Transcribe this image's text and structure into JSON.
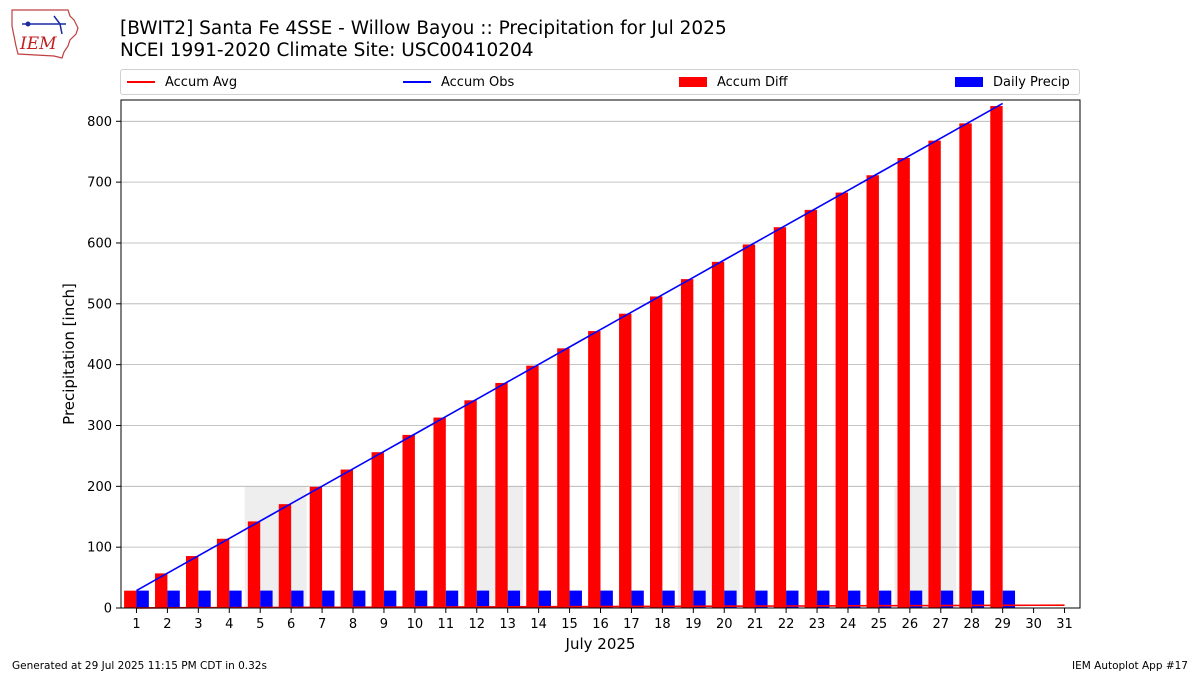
{
  "header": {
    "logo_text": "IEM",
    "title_line1": "[BWIT2] Santa Fe 4SSE - Willow Bayou :: Precipitation for Jul 2025",
    "title_line2": "NCEI 1991-2020 Climate Site: USC00410204"
  },
  "footer": {
    "left": "Generated at 29 Jul 2025 11:15 PM CDT in 0.32s",
    "right": "IEM Autoplot App #17"
  },
  "colors": {
    "accum_avg": "#ff0000",
    "accum_obs": "#0000ff",
    "accum_diff": "#ff0000",
    "daily_precip": "#0000ff",
    "weekend_shade": "#eeeeee",
    "grid": "#b0b0b0"
  },
  "chart_data": {
    "type": "bar",
    "xlabel": "July 2025",
    "ylabel": "Precipitation [inch]",
    "ylim": [
      0,
      835
    ],
    "xlim": [
      0.5,
      31.5
    ],
    "yticks": [
      0,
      100,
      200,
      300,
      400,
      500,
      600,
      700,
      800
    ],
    "grid": true,
    "legend_position": "top",
    "days": [
      1,
      2,
      3,
      4,
      5,
      6,
      7,
      8,
      9,
      10,
      11,
      12,
      13,
      14,
      15,
      16,
      17,
      18,
      19,
      20,
      21,
      22,
      23,
      24,
      25,
      26,
      27,
      28,
      29,
      30,
      31
    ],
    "weekend_shading": [
      {
        "start": 4.5,
        "end": 6.5
      },
      {
        "start": 11.5,
        "end": 13.5
      },
      {
        "start": 18.5,
        "end": 20.5
      },
      {
        "start": 25.5,
        "end": 27.5
      }
    ],
    "weekend_shading_top": 200,
    "series": [
      {
        "name": "Accum Avg",
        "type": "line",
        "x": [
          1,
          2,
          3,
          4,
          5,
          6,
          7,
          8,
          9,
          10,
          11,
          12,
          13,
          14,
          15,
          16,
          17,
          18,
          19,
          20,
          21,
          22,
          23,
          24,
          25,
          26,
          27,
          28,
          29,
          30,
          31
        ],
        "values": [
          0.15,
          0.3,
          0.45,
          0.6,
          0.75,
          0.9,
          1.05,
          1.2,
          1.35,
          1.5,
          1.65,
          1.8,
          1.95,
          2.1,
          2.25,
          2.4,
          2.55,
          2.7,
          2.85,
          3.0,
          3.15,
          3.3,
          3.45,
          3.6,
          3.75,
          3.9,
          4.05,
          4.2,
          4.35,
          4.5,
          4.65
        ]
      },
      {
        "name": "Accum Obs",
        "type": "line",
        "x": [
          1,
          2,
          3,
          4,
          5,
          6,
          7,
          8,
          9,
          10,
          11,
          12,
          13,
          14,
          15,
          16,
          17,
          18,
          19,
          20,
          21,
          22,
          23,
          24,
          25,
          26,
          27,
          28,
          29
        ],
        "values": [
          28.6,
          57.2,
          85.8,
          114.4,
          143.0,
          171.6,
          200.2,
          228.8,
          257.4,
          286.0,
          314.6,
          343.2,
          371.8,
          400.4,
          429.0,
          457.6,
          486.2,
          514.8,
          543.4,
          572.0,
          600.6,
          629.2,
          657.8,
          686.4,
          715.0,
          743.6,
          772.2,
          800.8,
          829.4
        ]
      },
      {
        "name": "Accum Diff",
        "type": "bar",
        "x": [
          1,
          2,
          3,
          4,
          5,
          6,
          7,
          8,
          9,
          10,
          11,
          12,
          13,
          14,
          15,
          16,
          17,
          18,
          19,
          20,
          21,
          22,
          23,
          24,
          25,
          26,
          27,
          28,
          29
        ],
        "values": [
          28.5,
          56.9,
          85.4,
          113.8,
          142.3,
          170.7,
          199.2,
          227.6,
          256.1,
          284.5,
          313.0,
          341.4,
          369.9,
          398.3,
          426.8,
          455.2,
          483.7,
          512.1,
          540.6,
          569.0,
          597.5,
          625.9,
          654.4,
          682.8,
          711.3,
          739.7,
          768.2,
          796.6,
          825.1
        ]
      },
      {
        "name": "Daily Precip",
        "type": "bar",
        "x": [
          1,
          2,
          3,
          4,
          5,
          6,
          7,
          8,
          9,
          10,
          11,
          12,
          13,
          14,
          15,
          16,
          17,
          18,
          19,
          20,
          21,
          22,
          23,
          24,
          25,
          26,
          27,
          28,
          29
        ],
        "values": [
          28.6,
          28.6,
          28.6,
          28.6,
          28.6,
          28.6,
          28.6,
          28.6,
          28.6,
          28.6,
          28.6,
          28.6,
          28.6,
          28.6,
          28.6,
          28.6,
          28.6,
          28.6,
          28.6,
          28.6,
          28.6,
          28.6,
          28.6,
          28.6,
          28.6,
          28.6,
          28.6,
          28.6,
          28.6
        ]
      }
    ]
  }
}
